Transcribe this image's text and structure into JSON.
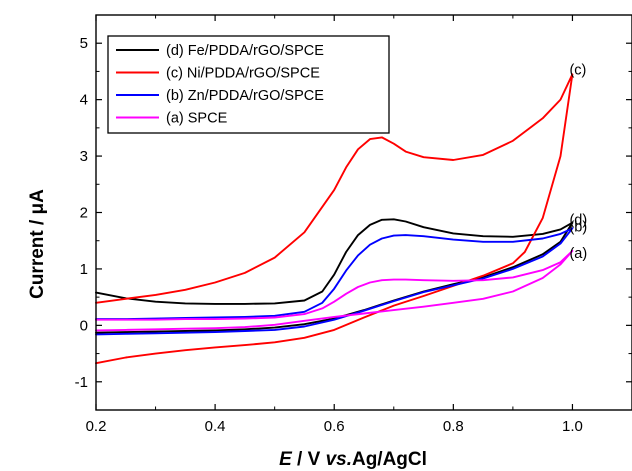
{
  "chart_data": {
    "type": "line",
    "ylabel": "Current / μA",
    "xlabel": {
      "parts": [
        {
          "text": "E",
          "italic": true
        },
        {
          "text": " / V ",
          "italic": false
        },
        {
          "text": "vs.",
          "italic": true
        },
        {
          "text": "Ag/AgCl",
          "italic": false
        }
      ]
    },
    "xlim": [
      0.2,
      1.1
    ],
    "ylim": [
      -1.5,
      5.5
    ],
    "xticks": [
      0.2,
      0.4,
      0.6,
      0.8,
      1.0
    ],
    "xtick_labels": [
      "0.2",
      "0.4",
      "0.6",
      "0.8",
      "1.0"
    ],
    "yticks": [
      -1,
      0,
      1,
      2,
      3,
      4,
      5
    ],
    "ytick_labels": [
      "-1",
      "0",
      "1",
      "2",
      "3",
      "4",
      "5"
    ],
    "grid": false,
    "legend_position": "top-left",
    "series": [
      {
        "name": "(d) Fe/PDDA/rGO/SPCE",
        "label": "(d)",
        "color": "#000000",
        "x": [
          0.2,
          0.25,
          0.3,
          0.35,
          0.4,
          0.45,
          0.5,
          0.55,
          0.58,
          0.6,
          0.62,
          0.64,
          0.66,
          0.68,
          0.7,
          0.72,
          0.75,
          0.8,
          0.85,
          0.9,
          0.95,
          0.98,
          1.0,
          0.98,
          0.95,
          0.9,
          0.85,
          0.8,
          0.75,
          0.7,
          0.65,
          0.6,
          0.55,
          0.5,
          0.45,
          0.4,
          0.35,
          0.3,
          0.25,
          0.2
        ],
        "y": [
          0.58,
          0.48,
          0.42,
          0.39,
          0.38,
          0.38,
          0.39,
          0.44,
          0.6,
          0.9,
          1.3,
          1.6,
          1.78,
          1.87,
          1.88,
          1.84,
          1.74,
          1.63,
          1.58,
          1.57,
          1.62,
          1.7,
          1.82,
          1.48,
          1.26,
          1.03,
          0.85,
          0.73,
          0.6,
          0.44,
          0.27,
          0.12,
          0.02,
          -0.04,
          -0.07,
          -0.09,
          -0.1,
          -0.11,
          -0.12,
          -0.13
        ]
      },
      {
        "name": "(c) Ni/PDDA/rGO/SPCE",
        "label": "(c)",
        "color": "#ff0000",
        "x": [
          0.2,
          0.25,
          0.3,
          0.35,
          0.4,
          0.45,
          0.5,
          0.55,
          0.6,
          0.62,
          0.64,
          0.66,
          0.68,
          0.7,
          0.72,
          0.75,
          0.8,
          0.85,
          0.9,
          0.95,
          0.98,
          1.0,
          0.98,
          0.95,
          0.92,
          0.9,
          0.85,
          0.8,
          0.75,
          0.7,
          0.65,
          0.6,
          0.55,
          0.5,
          0.45,
          0.4,
          0.35,
          0.3,
          0.25,
          0.2
        ],
        "y": [
          0.4,
          0.47,
          0.54,
          0.63,
          0.76,
          0.93,
          1.2,
          1.65,
          2.4,
          2.8,
          3.12,
          3.3,
          3.33,
          3.22,
          3.08,
          2.98,
          2.93,
          3.02,
          3.27,
          3.67,
          4.0,
          4.45,
          3.0,
          1.9,
          1.3,
          1.1,
          0.88,
          0.7,
          0.52,
          0.35,
          0.14,
          -0.08,
          -0.22,
          -0.3,
          -0.35,
          -0.39,
          -0.44,
          -0.5,
          -0.57,
          -0.67
        ]
      },
      {
        "name": "(b) Zn/PDDA/rGO/SPCE",
        "label": "(b)",
        "color": "#0000ff",
        "x": [
          0.2,
          0.25,
          0.3,
          0.35,
          0.4,
          0.45,
          0.5,
          0.55,
          0.58,
          0.6,
          0.62,
          0.64,
          0.66,
          0.68,
          0.7,
          0.72,
          0.75,
          0.8,
          0.85,
          0.9,
          0.95,
          0.98,
          1.0,
          0.98,
          0.95,
          0.9,
          0.85,
          0.8,
          0.75,
          0.7,
          0.65,
          0.6,
          0.55,
          0.5,
          0.45,
          0.4,
          0.35,
          0.3,
          0.25,
          0.2
        ],
        "y": [
          0.11,
          0.11,
          0.12,
          0.13,
          0.14,
          0.15,
          0.17,
          0.24,
          0.4,
          0.65,
          0.97,
          1.24,
          1.43,
          1.54,
          1.59,
          1.6,
          1.58,
          1.52,
          1.48,
          1.48,
          1.54,
          1.62,
          1.72,
          1.45,
          1.22,
          1.0,
          0.83,
          0.71,
          0.59,
          0.43,
          0.26,
          0.1,
          -0.02,
          -0.08,
          -0.1,
          -0.12,
          -0.13,
          -0.14,
          -0.15,
          -0.16
        ]
      },
      {
        "name": "(a) SPCE",
        "label": "(a)",
        "color": "#ff00ff",
        "x": [
          0.2,
          0.25,
          0.3,
          0.35,
          0.4,
          0.45,
          0.5,
          0.55,
          0.58,
          0.6,
          0.62,
          0.64,
          0.66,
          0.68,
          0.7,
          0.72,
          0.75,
          0.8,
          0.85,
          0.9,
          0.95,
          0.98,
          1.0,
          0.98,
          0.95,
          0.9,
          0.85,
          0.8,
          0.75,
          0.7,
          0.65,
          0.6,
          0.55,
          0.5,
          0.45,
          0.4,
          0.35,
          0.3,
          0.25,
          0.2
        ],
        "y": [
          0.1,
          0.1,
          0.1,
          0.11,
          0.11,
          0.12,
          0.14,
          0.2,
          0.3,
          0.42,
          0.56,
          0.68,
          0.76,
          0.8,
          0.81,
          0.81,
          0.8,
          0.79,
          0.8,
          0.85,
          0.98,
          1.12,
          1.32,
          1.08,
          0.84,
          0.6,
          0.47,
          0.4,
          0.33,
          0.27,
          0.21,
          0.15,
          0.08,
          0.01,
          -0.03,
          -0.05,
          -0.06,
          -0.07,
          -0.08,
          -0.09
        ]
      }
    ]
  }
}
